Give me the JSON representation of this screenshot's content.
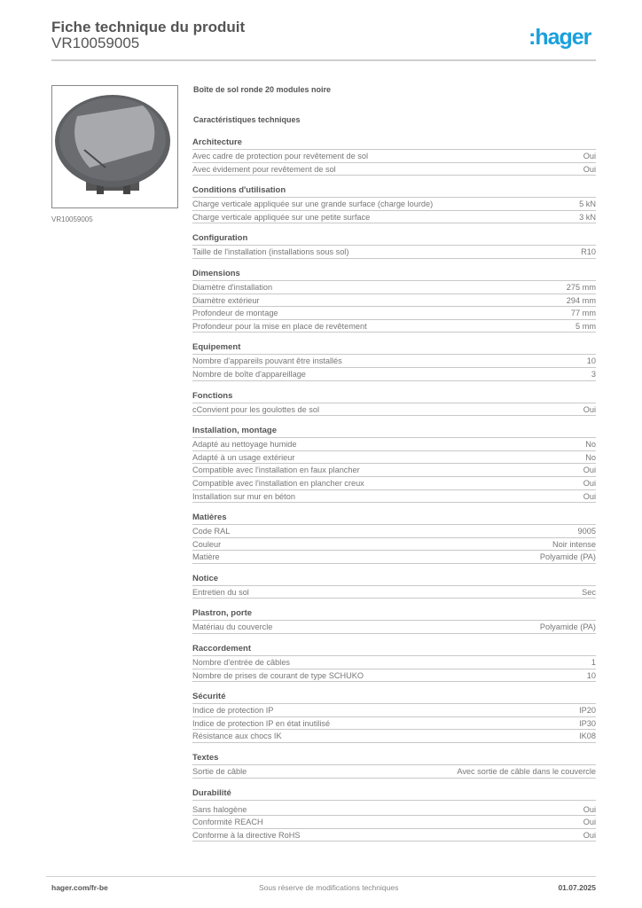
{
  "header": {
    "title": "Fiche technique du produit",
    "code": "VR10059005",
    "logo": ":hager"
  },
  "image": {
    "caption": "VR10059005"
  },
  "product_name": "Boîte de sol ronde 20 modules noire",
  "characteristics_title": "Caractéristiques techniques",
  "sections": [
    {
      "title": "Architecture",
      "rows": [
        {
          "label": "Avec cadre de protection pour revêtement de sol",
          "value": "Oui"
        },
        {
          "label": "Avec évidement pour revêtement de sol",
          "value": "Oui"
        }
      ]
    },
    {
      "title": "Conditions d'utilisation",
      "rows": [
        {
          "label": "Charge verticale appliquée sur une grande surface (charge lourde)",
          "value": "5 kN"
        },
        {
          "label": "Charge verticale appliquée sur une petite surface",
          "value": "3 kN"
        }
      ]
    },
    {
      "title": "Configuration",
      "rows": [
        {
          "label": "Taille de l'installation (installations sous sol)",
          "value": "R10"
        }
      ]
    },
    {
      "title": "Dimensions",
      "rows": [
        {
          "label": "Diamètre d'installation",
          "value": "275 mm"
        },
        {
          "label": "Diamètre extérieur",
          "value": "294 mm"
        },
        {
          "label": "Profondeur de montage",
          "value": "77 mm"
        },
        {
          "label": "Profondeur pour la mise en place de revêtement",
          "value": "5 mm"
        }
      ]
    },
    {
      "title": "Equipement",
      "rows": [
        {
          "label": "Nombre d'appareils pouvant être installés",
          "value": "10"
        },
        {
          "label": "Nombre de boîte d'appareillage",
          "value": "3"
        }
      ]
    },
    {
      "title": "Fonctions",
      "rows": [
        {
          "label": "cConvient pour les goulottes de sol",
          "value": "Oui"
        }
      ]
    },
    {
      "title": "Installation, montage",
      "rows": [
        {
          "label": "Adapté au nettoyage humide",
          "value": "No"
        },
        {
          "label": "Adapté à un usage extérieur",
          "value": "No"
        },
        {
          "label": "Compatible avec l'installation en faux plancher",
          "value": "Oui"
        },
        {
          "label": "Compatible avec l'installation en plancher creux",
          "value": "Oui"
        },
        {
          "label": "Installation sur mur en béton",
          "value": "Oui"
        }
      ]
    },
    {
      "title": "Matières",
      "rows": [
        {
          "label": "Code RAL",
          "value": "9005"
        },
        {
          "label": "Couleur",
          "value": "Noir intense"
        },
        {
          "label": "Matière",
          "value": "Polyamide (PA)"
        }
      ]
    },
    {
      "title": "Notice",
      "rows": [
        {
          "label": "Entretien du sol",
          "value": "Sec"
        }
      ]
    },
    {
      "title": " Plastron, porte",
      "rows": [
        {
          "label": "Matériau du couvercle",
          "value": "Polyamide (PA)"
        }
      ]
    },
    {
      "title": "Raccordement",
      "rows": [
        {
          "label": "Nombre d'entrée de câbles",
          "value": "1"
        },
        {
          "label": "Nombre de prises de courant de type SCHUKO",
          "value": "10"
        }
      ]
    },
    {
      "title": "Sécurité",
      "rows": [
        {
          "label": "Indice de protection IP",
          "value": "IP20"
        },
        {
          "label": "Indice de protection IP en état inutilisé",
          "value": "IP30"
        },
        {
          "label": "Résistance aux chocs IK",
          "value": "IK08"
        }
      ]
    },
    {
      "title": "Textes",
      "rows": [
        {
          "label": "Sortie de câble",
          "value": "Avec sortie de câble dans le couvercle"
        }
      ]
    },
    {
      "title": "Durabilité",
      "rows": [
        {
          "label": "Sans halogène",
          "value": "Oui"
        },
        {
          "label": "Conformité REACH",
          "value": "Oui"
        },
        {
          "label": "Conforme à la directive RoHS",
          "value": "Oui"
        }
      ]
    }
  ],
  "footer": {
    "website": "hager.com/fr-be",
    "disclaimer": "Sous réserve de modifications techniques",
    "date": "01.07.2025"
  },
  "colors": {
    "brand": "#19a0dc"
  }
}
